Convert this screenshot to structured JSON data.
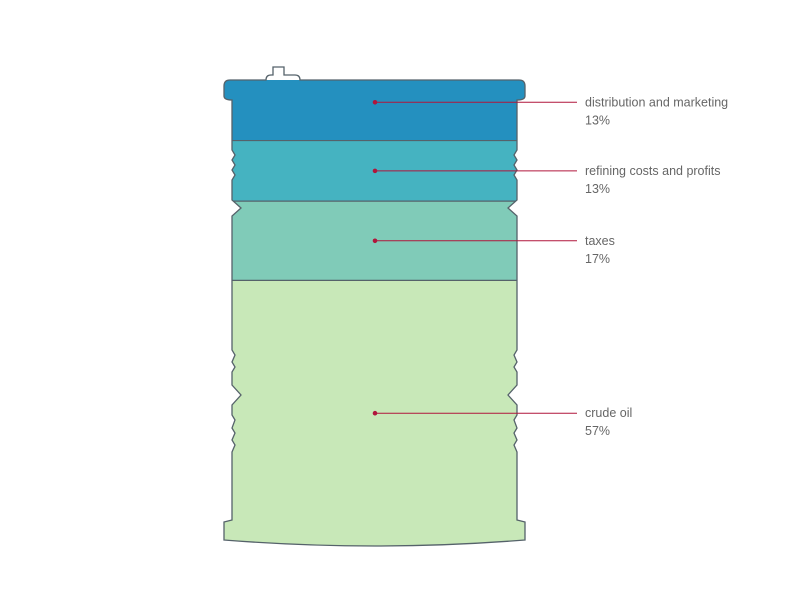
{
  "chart_data": {
    "type": "stacked-bar",
    "title": "",
    "unit": "%",
    "categories": [
      "distribution and marketing",
      "refining costs and profits",
      "taxes",
      "crude oil"
    ],
    "values": [
      13,
      13,
      17,
      57
    ],
    "labels": [
      "13%",
      "13%",
      "17%",
      "57%"
    ],
    "colors": [
      "#2490bf",
      "#45b3c1",
      "#80cbb8",
      "#c8e8b8"
    ],
    "leader_color": "#b0163c",
    "outline_color": "#55626a",
    "shape": "oil barrel"
  }
}
